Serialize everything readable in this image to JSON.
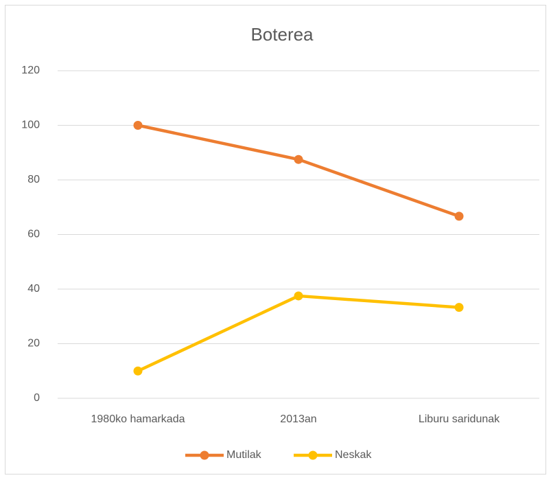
{
  "chart_data": {
    "type": "line",
    "title": "Boterea",
    "categories": [
      "1980ko hamarkada",
      "2013an",
      "Liburu saridunak"
    ],
    "series": [
      {
        "name": "Mutilak",
        "color": "#ed7d31",
        "values": [
          100,
          87.5,
          66.7
        ]
      },
      {
        "name": "Neskak",
        "color": "#ffc000",
        "values": [
          10,
          37.5,
          33.3
        ]
      }
    ],
    "ylim": [
      0,
      120
    ],
    "yticks": [
      0,
      20,
      40,
      60,
      80,
      100,
      120
    ],
    "grid": true,
    "legend": "bottom"
  }
}
